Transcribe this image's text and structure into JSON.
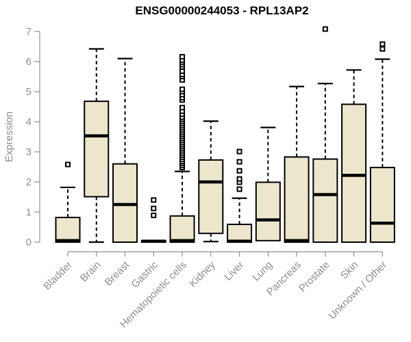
{
  "chart_data": {
    "type": "boxplot",
    "title": "ENSG00000244053 - RPL13AP2",
    "ylabel": "Expression",
    "xlabel": "",
    "ylim": [
      0,
      7
    ],
    "yticks": [
      0,
      1,
      2,
      3,
      4,
      5,
      6,
      7
    ],
    "grid": false,
    "legend": "none",
    "categories": [
      "Bladder",
      "Brain",
      "Breast",
      "Gastric",
      "Hematopoietic cells",
      "Kidney",
      "Liver",
      "Lung",
      "Pancreas",
      "Prostate",
      "Skin",
      "Unknown / Other"
    ],
    "boxes": [
      {
        "category": "Bladder",
        "low": 0,
        "q1": 0,
        "median": 0.05,
        "q3": 0.82,
        "high": 1.82,
        "outliers": [
          2.58
        ]
      },
      {
        "category": "Brain",
        "low": 0,
        "q1": 1.51,
        "median": 3.53,
        "q3": 4.68,
        "high": 6.42,
        "outliers": []
      },
      {
        "category": "Breast",
        "low": 0,
        "q1": 0,
        "median": 1.25,
        "q3": 2.6,
        "high": 6.1,
        "outliers": []
      },
      {
        "category": "Gastric",
        "low": 0,
        "q1": 0,
        "median": 0.03,
        "q3": 0.05,
        "high": 0.05,
        "outliers": [
          0.89,
          1.12,
          1.4
        ]
      },
      {
        "category": "Hematopoietic cells",
        "low": 0,
        "q1": 0,
        "median": 0.05,
        "q3": 0.87,
        "high": 2.35,
        "outliers": [
          2.48,
          2.55,
          2.62,
          2.68,
          2.75,
          2.82,
          2.89,
          2.96,
          3.03,
          3.1,
          3.17,
          3.24,
          3.31,
          3.38,
          3.45,
          3.52,
          3.59,
          3.66,
          3.73,
          3.8,
          3.87,
          3.94,
          4.01,
          4.08,
          4.15,
          4.25,
          4.35,
          4.47,
          4.72,
          4.8,
          4.9,
          5.0,
          5.08,
          5.39,
          5.5,
          5.57,
          5.68,
          5.82,
          5.9,
          5.98,
          6.05,
          6.16
        ]
      },
      {
        "category": "Kidney",
        "low": 0.02,
        "q1": 0.29,
        "median": 2.0,
        "q3": 2.73,
        "high": 4.02,
        "outliers": []
      },
      {
        "category": "Liver",
        "low": 0,
        "q1": 0,
        "median": 0.03,
        "q3": 0.59,
        "high": 1.46,
        "outliers": [
          1.76,
          1.99,
          2.1,
          2.37,
          2.67,
          3.01
        ]
      },
      {
        "category": "Lung",
        "low": 0.05,
        "q1": 0.05,
        "median": 0.74,
        "q3": 1.99,
        "high": 3.81,
        "outliers": []
      },
      {
        "category": "Pancreas",
        "low": 0,
        "q1": 0,
        "median": 0.05,
        "q3": 2.83,
        "high": 5.17,
        "outliers": []
      },
      {
        "category": "Prostate",
        "low": 0,
        "q1": 0,
        "median": 1.58,
        "q3": 2.76,
        "high": 5.27,
        "outliers": [
          7.08
        ]
      },
      {
        "category": "Skin",
        "low": 0,
        "q1": 0,
        "median": 2.22,
        "q3": 4.58,
        "high": 5.72,
        "outliers": []
      },
      {
        "category": "Unknown / Other",
        "low": 0,
        "q1": 0,
        "median": 0.63,
        "q3": 2.48,
        "high": 6.08,
        "outliers": [
          6.42,
          6.58
        ]
      }
    ],
    "colors": {
      "box_fill": "#ece6cd",
      "box_border": "#000000",
      "median": "#000000",
      "whisker": "#000000",
      "outlier_border": "#000000",
      "outlier_fill": "#ffffff",
      "axis": "#8e8e8e",
      "tick_label": "#8e8e8e",
      "title": "#000000",
      "background": "#ffffff"
    }
  }
}
